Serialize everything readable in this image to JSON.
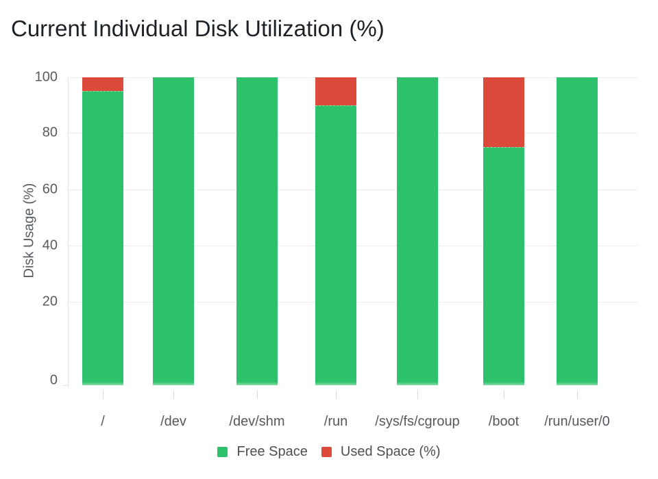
{
  "page": {
    "title": "Current Individual Disk Utilization (%)"
  },
  "chart_data": {
    "type": "bar",
    "stacked": true,
    "title": "Current Individual Disk Utilization (%)",
    "ylabel": "Disk Usage (%)",
    "xlabel": "",
    "categories": [
      "/",
      "/dev",
      "/dev/shm",
      "/run",
      "/sys/fs/cgroup",
      "/boot",
      "/run/user/0"
    ],
    "series": [
      {
        "name": "Free Space",
        "color": "#2dc16c",
        "values": [
          95,
          100,
          100,
          90,
          100,
          75,
          100
        ]
      },
      {
        "name": "Used Space (%)",
        "color": "#db4a3b",
        "values": [
          5,
          0,
          0,
          10,
          0,
          25,
          0
        ]
      }
    ],
    "ylim": [
      0,
      100
    ],
    "yticks": [
      100,
      80,
      60,
      40,
      20,
      0
    ],
    "grid": true,
    "legend_position": "bottom",
    "colors": {
      "free": "#2dc16c",
      "used": "#db4a3b",
      "gridline": "#ededed",
      "axis_line": "#e4e4e4",
      "tick_text": "#565b60",
      "title_text": "#1b2127"
    }
  }
}
